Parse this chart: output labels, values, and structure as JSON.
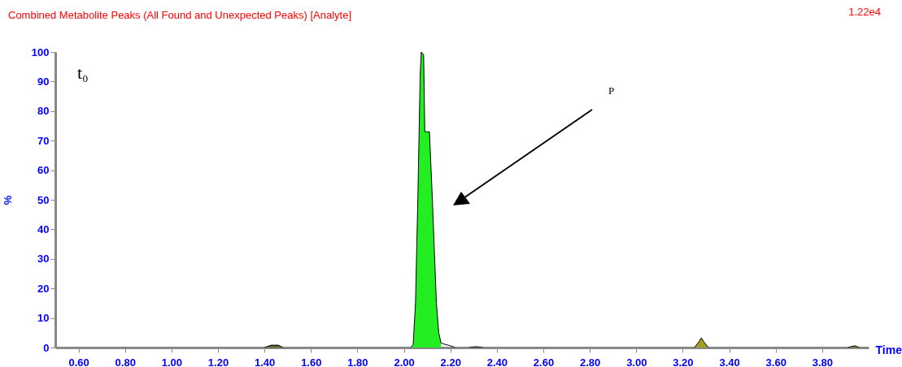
{
  "chart_data": {
    "type": "area",
    "title": "Combined Metabolite Peaks (All Found and Unexpected Peaks)  [Analyte]",
    "xlabel": "Time",
    "ylabel": "%",
    "annotations": [
      "1.22e4",
      "t₀",
      "P"
    ],
    "xlim": [
      0.5,
      4.0
    ],
    "xticks": [
      {
        "value": 0.6,
        "label": "0.60"
      },
      {
        "value": 0.8,
        "label": "0.80"
      },
      {
        "value": 1.0,
        "label": "1.00"
      },
      {
        "value": 1.2,
        "label": "1.20"
      },
      {
        "value": 1.4,
        "label": "1.40"
      },
      {
        "value": 1.6,
        "label": "1.60"
      },
      {
        "value": 1.8,
        "label": "1.80"
      },
      {
        "value": 2.0,
        "label": "2.00"
      },
      {
        "value": 2.2,
        "label": "2.20"
      },
      {
        "value": 2.4,
        "label": "2.40"
      },
      {
        "value": 2.6,
        "label": "2.60"
      },
      {
        "value": 2.8,
        "label": "2.80"
      },
      {
        "value": 3.0,
        "label": "3.00"
      },
      {
        "value": 3.2,
        "label": "3.20"
      },
      {
        "value": 3.4,
        "label": "3.40"
      },
      {
        "value": 3.6,
        "label": "3.60"
      },
      {
        "value": 3.8,
        "label": "3.80"
      }
    ],
    "ylim": [
      0,
      100
    ],
    "yticks": [
      0,
      10,
      20,
      30,
      40,
      50,
      60,
      70,
      80,
      90,
      100
    ],
    "grid": false,
    "series": [
      {
        "color": "#22ee22",
        "x": [
          2.03,
          2.04,
          2.05,
          2.06,
          2.07,
          2.075,
          2.085,
          2.09,
          2.11,
          2.12,
          2.13,
          2.14,
          2.15,
          2.16
        ],
        "values": [
          0,
          1,
          15,
          50,
          92,
          100,
          99,
          73,
          73,
          55,
          35,
          15,
          5,
          1.5
        ]
      },
      {
        "type": "line",
        "color": "#000000",
        "x": [
          2.16,
          2.18,
          2.2,
          2.22
        ],
        "values": [
          1.5,
          1,
          0.6,
          0
        ]
      },
      {
        "color": "#4f6b1f",
        "x": [
          1.4,
          1.43,
          1.46,
          1.48
        ],
        "values": [
          0,
          0.8,
          0.8,
          0
        ]
      },
      {
        "color": "#4f6b1f",
        "x": [
          2.28,
          2.31,
          2.34
        ],
        "values": [
          0,
          0.3,
          0
        ]
      },
      {
        "color": "#a3a025",
        "x": [
          3.25,
          3.27,
          3.28,
          3.29,
          3.31
        ],
        "values": [
          0,
          2,
          3.3,
          2,
          0
        ]
      },
      {
        "color": "#7a7a20",
        "x": [
          3.91,
          3.94,
          3.96
        ],
        "values": [
          0,
          0.6,
          0
        ]
      }
    ]
  }
}
